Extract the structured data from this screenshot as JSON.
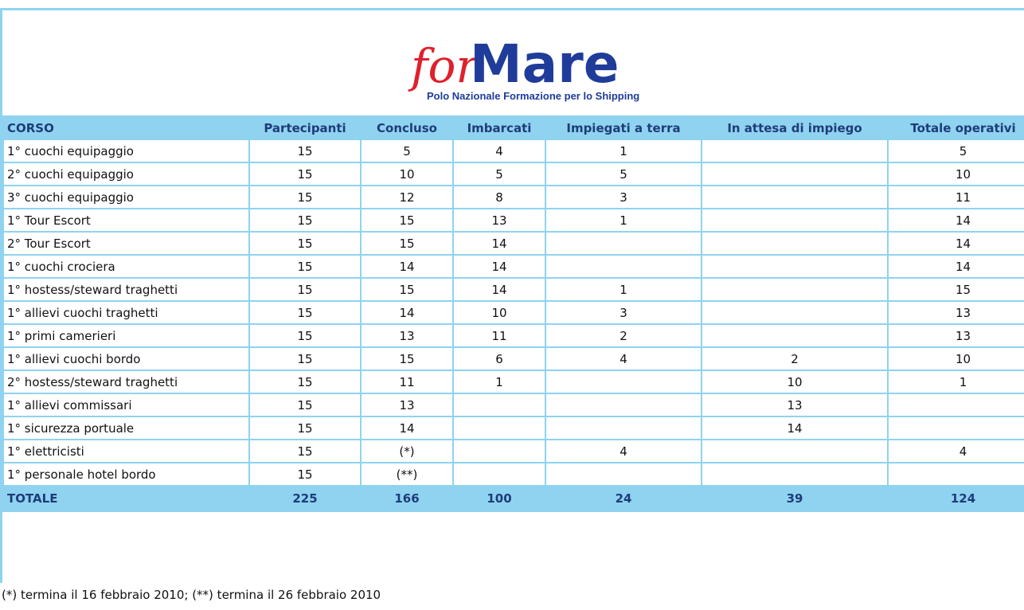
{
  "logo": {
    "for": "for",
    "mare": "Mare",
    "tagline": "Polo Nazionale Formazione per lo Shipping"
  },
  "table": {
    "header": [
      "CORSO",
      "Partecipanti",
      "Concluso",
      "Imbarcati",
      "Impiegati a terra",
      "In attesa di impiego",
      "Totale operativi"
    ],
    "rows": [
      [
        "1° cuochi equipaggio",
        15,
        5,
        4,
        1,
        null,
        5
      ],
      [
        "2° cuochi equipaggio",
        15,
        10,
        5,
        5,
        null,
        10
      ],
      [
        "3° cuochi equipaggio",
        15,
        12,
        8,
        3,
        null,
        11
      ],
      [
        "1° Tour Escort",
        15,
        15,
        13,
        1,
        null,
        14
      ],
      [
        "2° Tour Escort",
        15,
        15,
        14,
        null,
        null,
        14
      ],
      [
        "1° cuochi crociera",
        15,
        14,
        14,
        null,
        null,
        14
      ],
      [
        "1° hostess/steward traghetti",
        15,
        15,
        14,
        1,
        null,
        15
      ],
      [
        "1° allievi cuochi traghetti",
        15,
        14,
        10,
        3,
        null,
        13
      ],
      [
        "1° primi camerieri",
        15,
        13,
        11,
        2,
        null,
        13
      ],
      [
        "1° allievi cuochi bordo",
        15,
        15,
        6,
        4,
        2,
        10
      ],
      [
        "2° hostess/steward traghetti",
        15,
        11,
        1,
        null,
        10,
        1
      ],
      [
        "1° allievi commissari",
        15,
        13,
        null,
        null,
        13,
        null
      ],
      [
        "1° sicurezza portuale",
        15,
        14,
        null,
        null,
        14,
        null
      ],
      [
        "1° elettricisti",
        15,
        "(*)",
        null,
        4,
        null,
        4
      ],
      [
        "1° personale hotel bordo",
        15,
        "(**)",
        null,
        null,
        null,
        null
      ]
    ],
    "total": [
      "TOTALE",
      225,
      166,
      100,
      24,
      39,
      124
    ]
  },
  "footnote": "(*) termina il 16 febbraio 2010; (**) termina il 26 febbraio 2010"
}
